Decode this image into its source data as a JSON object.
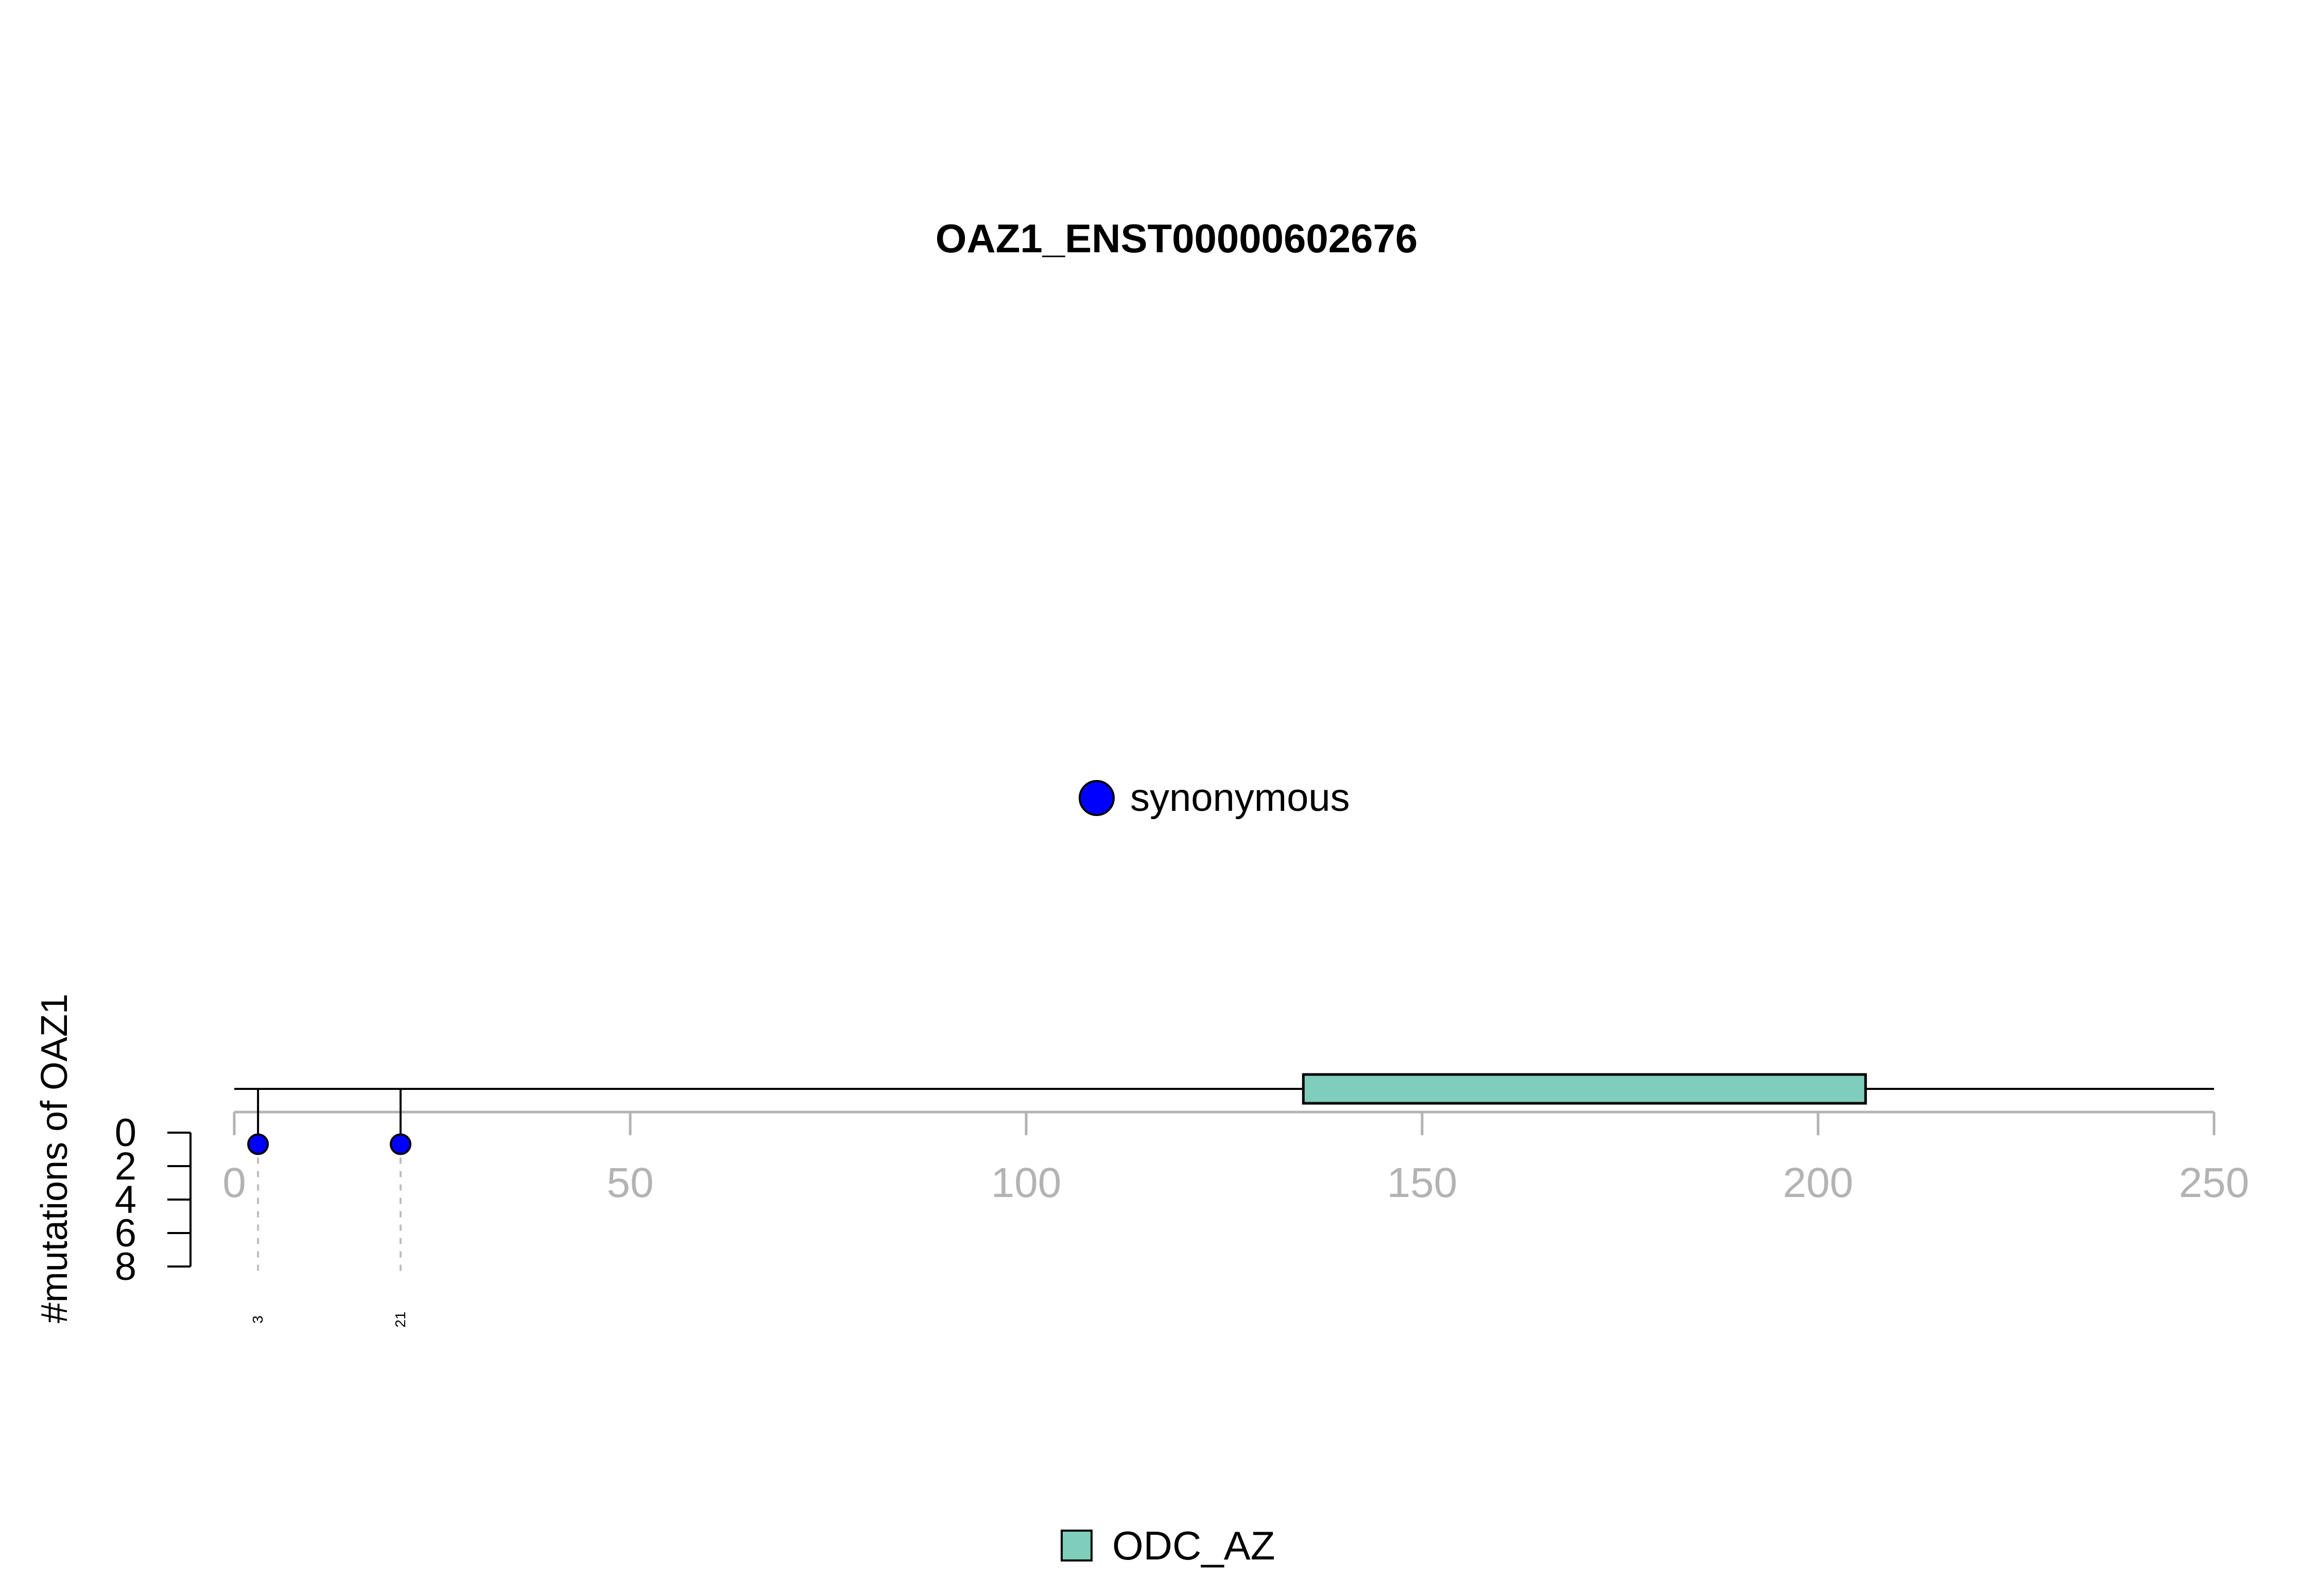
{
  "chart_data": {
    "type": "lollipop",
    "title": "OAZ1_ENST00000602676",
    "ylabel": "#mutations of OAZ1",
    "xlim": [
      0,
      250
    ],
    "x_ticks": [
      0,
      50,
      100,
      150,
      200,
      250
    ],
    "ylim": [
      0,
      8
    ],
    "y_ticks": [
      0,
      2,
      4,
      6,
      8
    ],
    "protein_length": 250,
    "mutations": [
      {
        "position": 3,
        "count": 1,
        "label": "3",
        "type": "synonymous"
      },
      {
        "position": 21,
        "count": 1,
        "label": "21",
        "type": "synonymous"
      }
    ],
    "domains": [
      {
        "name": "ODC_AZ",
        "start": 135,
        "end": 206
      }
    ],
    "mutation_legend": [
      {
        "label": "synonymous"
      }
    ],
    "domain_legend": [
      {
        "label": "ODC_AZ"
      }
    ],
    "colors": {
      "synonymous": "#0000ff",
      "ODC_AZ": "#7fcdbb",
      "axis": "#b3b3b3",
      "line": "#000000"
    }
  }
}
